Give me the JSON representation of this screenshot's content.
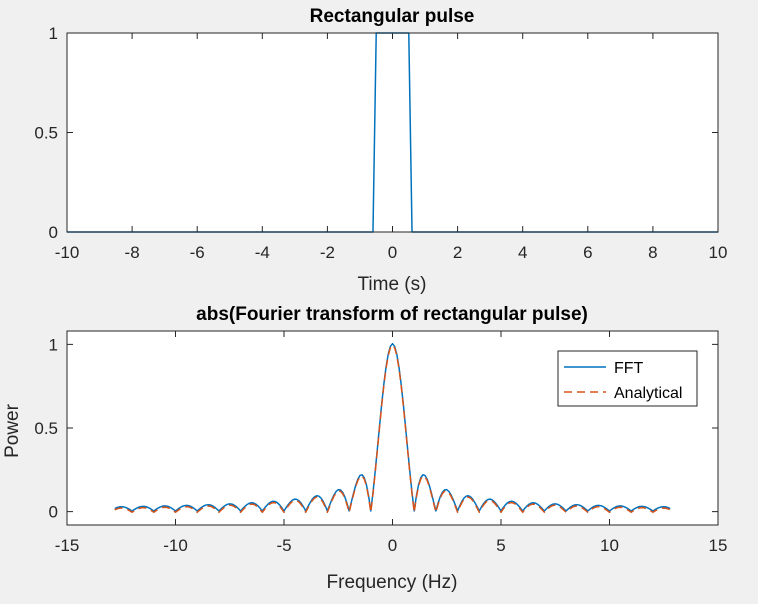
{
  "figure": {
    "background": "#f0f0f0",
    "axes_background": "#ffffff"
  },
  "chart_data": [
    {
      "type": "line",
      "title": "Rectangular pulse",
      "xlabel": "Time (s)",
      "ylabel": "",
      "xlim": [
        -10,
        10
      ],
      "ylim": [
        0,
        1
      ],
      "xticks": [
        -10,
        -8,
        -6,
        -4,
        -2,
        0,
        2,
        4,
        6,
        8,
        10
      ],
      "xtick_labels": [
        "-10",
        "-8",
        "-6",
        "-4",
        "-2",
        "0",
        "2",
        "4",
        "6",
        "8",
        "10"
      ],
      "yticks": [
        0,
        0.5,
        1
      ],
      "ytick_labels": [
        "0",
        "0.5",
        "1"
      ],
      "grid": false,
      "series": [
        {
          "color": "#0072BD",
          "style": "solid",
          "x": [
            -10,
            -0.6,
            -0.5,
            0.5,
            0.6,
            10
          ],
          "y": [
            0,
            0,
            1,
            1,
            0,
            0
          ]
        }
      ]
    },
    {
      "type": "line",
      "title": "abs(Fourier transform of rectangular pulse)",
      "xlabel": "Frequency (Hz)",
      "ylabel": "Power",
      "xlim": [
        -15,
        15
      ],
      "ylim": [
        -0.08,
        1.08
      ],
      "xticks": [
        -15,
        -10,
        -5,
        0,
        5,
        10,
        15
      ],
      "xtick_labels": [
        "-15",
        "-10",
        "-5",
        "0",
        "5",
        "10",
        "15"
      ],
      "yticks": [
        0,
        0.5,
        1
      ],
      "ytick_labels": [
        "0",
        "0.5",
        "1"
      ],
      "grid": false,
      "legend_location": "top-right",
      "series": [
        {
          "name": "FFT",
          "color": "#0072BD",
          "style": "solid",
          "function": "abs(sinc(f))",
          "x_range": [
            -12.8,
            12.8
          ]
        },
        {
          "name": "Analytical",
          "color": "#D95319",
          "style": "dashed",
          "function": "abs(sinc(f))",
          "x_range": [
            -12.8,
            12.8
          ]
        }
      ]
    }
  ]
}
